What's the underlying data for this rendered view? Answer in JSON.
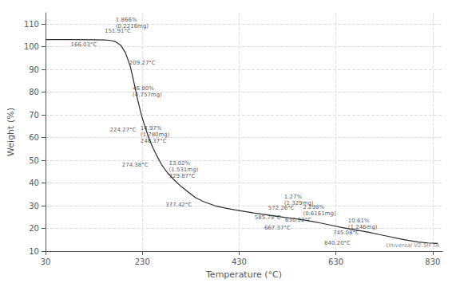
{
  "chart_data": {
    "type": "line",
    "xlabel": "Temperature (°C)",
    "ylabel": "Weight (%)",
    "watermark": "Universal V2.5H TA",
    "xlim": [
      30,
      850
    ],
    "ylim": [
      10,
      115
    ],
    "xticks": [
      30,
      230,
      430,
      630,
      830
    ],
    "yticks": [
      10,
      20,
      30,
      40,
      50,
      60,
      70,
      80,
      90,
      100,
      110
    ],
    "grid": true,
    "color": "#2a2a2a",
    "x": [
      30,
      80,
      130,
      152,
      165,
      175,
      185,
      195,
      205,
      212,
      220,
      228,
      236,
      244,
      252,
      260,
      270,
      282,
      295,
      310,
      325,
      340,
      360,
      380,
      400,
      420,
      440,
      460,
      480,
      500,
      520,
      540,
      560,
      580,
      600,
      620,
      640,
      660,
      680,
      700,
      720,
      740,
      760,
      780,
      800,
      820,
      840
    ],
    "values": [
      103.2,
      103.2,
      103.1,
      103.0,
      102.8,
      102.2,
      100.8,
      97.5,
      91.5,
      85.0,
      77.0,
      70.0,
      64.5,
      59.5,
      55.5,
      52.0,
      48.0,
      44.5,
      41.5,
      38.5,
      36.0,
      33.5,
      31.5,
      30.0,
      29.0,
      28.2,
      27.5,
      26.8,
      26.2,
      25.6,
      25.0,
      24.4,
      23.8,
      23.1,
      22.3,
      21.4,
      20.5,
      19.7,
      19.0,
      18.2,
      17.3,
      16.4,
      15.5,
      14.7,
      14.0,
      13.6,
      13.4
    ],
    "annotations": [
      {
        "text": "151.91°C",
        "x": 152,
        "y": 105.5
      },
      {
        "text": "1.866%\n(0.2216mg)",
        "x": 175,
        "y": 107.5
      },
      {
        "text": "166.03°C",
        "x": 82,
        "y": 99.5
      },
      {
        "text": "209.27°C",
        "x": 203,
        "y": 91.5
      },
      {
        "text": "46.80%\n(4.757mg)",
        "x": 210,
        "y": 77.5
      },
      {
        "text": "224.27°C",
        "x": 163,
        "y": 62.0
      },
      {
        "text": "14.97%\n(1.780mg)\n248.37°C",
        "x": 226,
        "y": 57.0
      },
      {
        "text": "274.38°C",
        "x": 188,
        "y": 46.5
      },
      {
        "text": "13.02%\n(1.531mg)\n329.87°C",
        "x": 285,
        "y": 41.5
      },
      {
        "text": "377.42°C",
        "x": 278,
        "y": 29.0
      },
      {
        "text": "1.27%\n(1.329mg)",
        "x": 523,
        "y": 29.5
      },
      {
        "text": "572.26°C",
        "x": 490,
        "y": 27.5
      },
      {
        "text": "585.79°C",
        "x": 462,
        "y": 23.5
      },
      {
        "text": "2.298%\n(0.6161mg)",
        "x": 562,
        "y": 25.0
      },
      {
        "text": "630.92°C",
        "x": 525,
        "y": 22.2
      },
      {
        "text": "667.37°C",
        "x": 482,
        "y": 18.8
      },
      {
        "text": "10.61%\n(1.246mg)",
        "x": 655,
        "y": 19.0
      },
      {
        "text": "745.08°C",
        "x": 624,
        "y": 16.5
      },
      {
        "text": "840.20°C",
        "x": 606,
        "y": 12.2
      }
    ]
  }
}
